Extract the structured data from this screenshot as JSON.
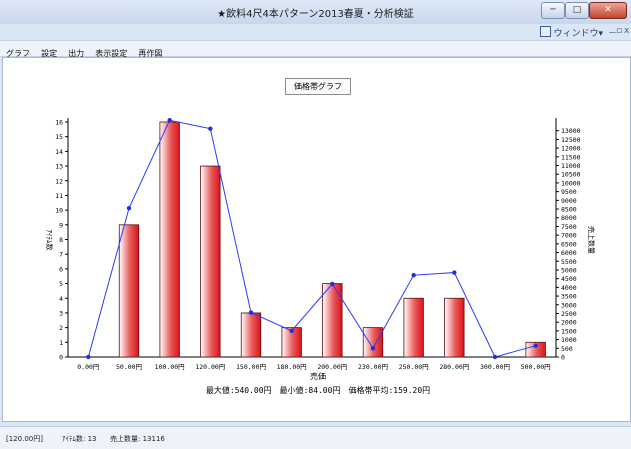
{
  "window": {
    "title": "★飲料4尺4本パターン2013春夏・分析検証",
    "min_glyph": "─",
    "max_glyph": "□",
    "close_glyph": "✕",
    "window_menu_label": "ウィンドウ",
    "window_menu_arrow": "▾",
    "mdi_min": "－",
    "mdi_restore": "▫",
    "mdi_close": "x"
  },
  "menu": {
    "items": [
      "グラフ",
      "設定",
      "出力",
      "表示設定",
      "再作図"
    ]
  },
  "graph_title_button": "価格帯グラフ",
  "summary_text": "最大値:540.00円　最小値:84.00円　価格帯平均:159.20円",
  "status": {
    "price": "[120.00円]",
    "item_count": "ｱｲﾃﾑ数: 13",
    "sales_qty": "売上数量: 13116"
  },
  "chart_data": {
    "type": "bar",
    "title": "",
    "xlabel": "売価",
    "ylabel": "ｱｲﾃﾑ数",
    "y2label": "売上数量",
    "categories": [
      "0.00円",
      "50.00円",
      "100.00円",
      "120.00円",
      "150.00円",
      "180.00円",
      "200.00円",
      "230.00円",
      "250.00円",
      "280.00円",
      "300.00円",
      "500.00円"
    ],
    "ylim": [
      0,
      16
    ],
    "y2lim": [
      0,
      13500
    ],
    "yticks": [
      0,
      1,
      2,
      3,
      4,
      5,
      6,
      7,
      8,
      9,
      10,
      11,
      12,
      13,
      14,
      15,
      16
    ],
    "y2ticks": [
      0,
      500,
      1000,
      1500,
      2000,
      2500,
      3000,
      3500,
      4000,
      4500,
      5000,
      5500,
      6000,
      6500,
      7000,
      7500,
      8000,
      8500,
      9000,
      9500,
      10000,
      10500,
      11000,
      11500,
      12000,
      12500,
      13000
    ],
    "series": [
      {
        "values": [
          0,
          9,
          16,
          13,
          3,
          2,
          5,
          2,
          4,
          4,
          0,
          1
        ],
        "type": "bar",
        "axis": "left",
        "color": "#e0242a"
      },
      {
        "values": [
          0,
          8550,
          13600,
          13116,
          2550,
          1500,
          4200,
          500,
          4700,
          4850,
          0,
          650
        ],
        "type": "line",
        "axis": "right",
        "color": "#2a3bff"
      }
    ],
    "grid": false,
    "legend": "none"
  }
}
